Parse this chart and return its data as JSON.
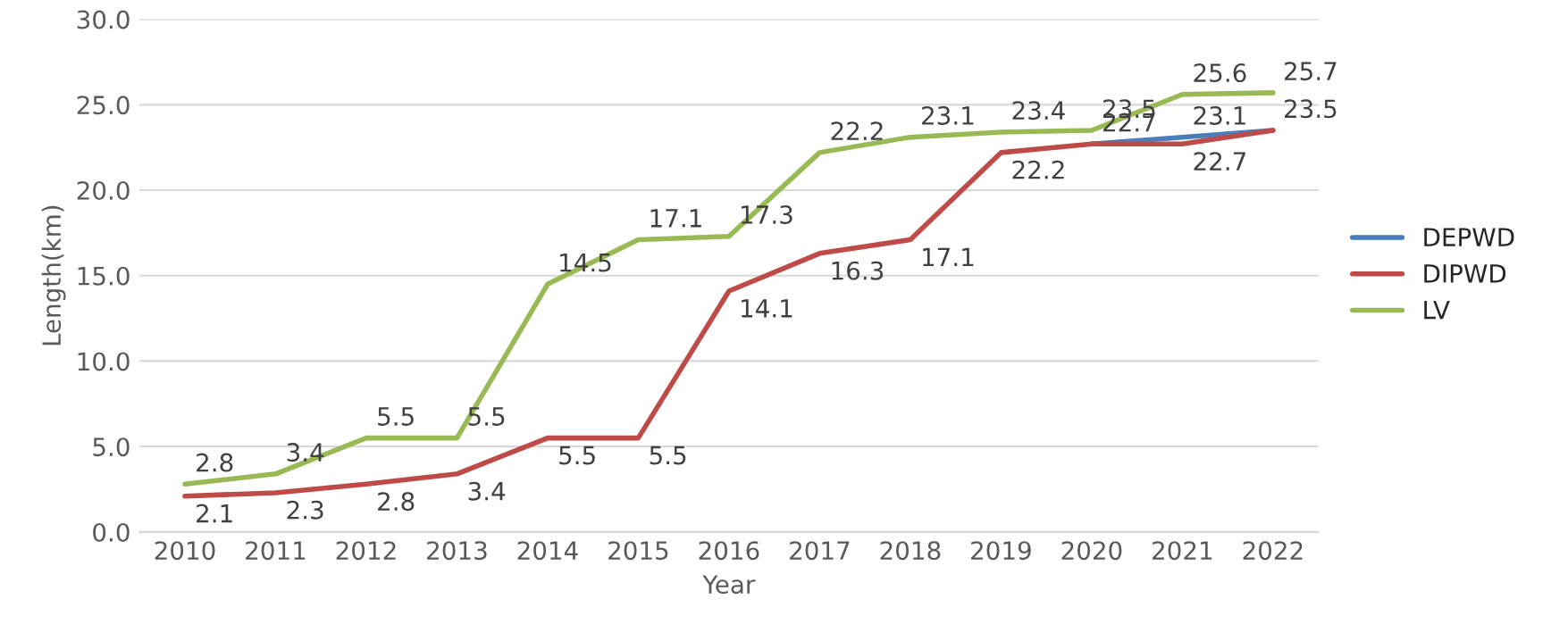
{
  "chart_data": {
    "type": "line",
    "xlabel": "Year",
    "ylabel": "Length(km)",
    "categories": [
      "2010",
      "2011",
      "2012",
      "2013",
      "2014",
      "2015",
      "2016",
      "2017",
      "2018",
      "2019",
      "2020",
      "2021",
      "2022"
    ],
    "series": [
      {
        "name": "DEPWD",
        "color": "#4a7ebb",
        "values": [
          null,
          null,
          null,
          null,
          null,
          null,
          null,
          null,
          null,
          null,
          22.7,
          23.1,
          23.5
        ],
        "value_labels": [
          null,
          null,
          null,
          null,
          null,
          null,
          null,
          null,
          null,
          null,
          null,
          "23.1",
          null
        ]
      },
      {
        "name": "DIPWD",
        "color": "#be4b48",
        "values": [
          2.1,
          2.3,
          2.8,
          3.4,
          5.5,
          5.5,
          14.1,
          16.3,
          17.1,
          22.2,
          22.7,
          22.7,
          23.5
        ]
      },
      {
        "name": "LV",
        "color": "#98b954",
        "values": [
          2.8,
          3.4,
          5.5,
          5.5,
          14.5,
          17.1,
          17.3,
          22.2,
          23.1,
          23.4,
          23.5,
          25.6,
          25.7
        ]
      }
    ],
    "ylim": [
      0,
      30
    ],
    "yticks": [
      {
        "value": 0,
        "label": "0.0"
      },
      {
        "value": 5,
        "label": "5.0"
      },
      {
        "value": 10,
        "label": "10.0"
      },
      {
        "value": 15,
        "label": "15.0"
      },
      {
        "value": 20,
        "label": "20.0"
      },
      {
        "value": 25,
        "label": "25.0"
      },
      {
        "value": 30,
        "label": "30.0"
      }
    ],
    "grid": "y",
    "legend": "right",
    "data_labels": true,
    "marker": "none",
    "line_style": "solid"
  }
}
